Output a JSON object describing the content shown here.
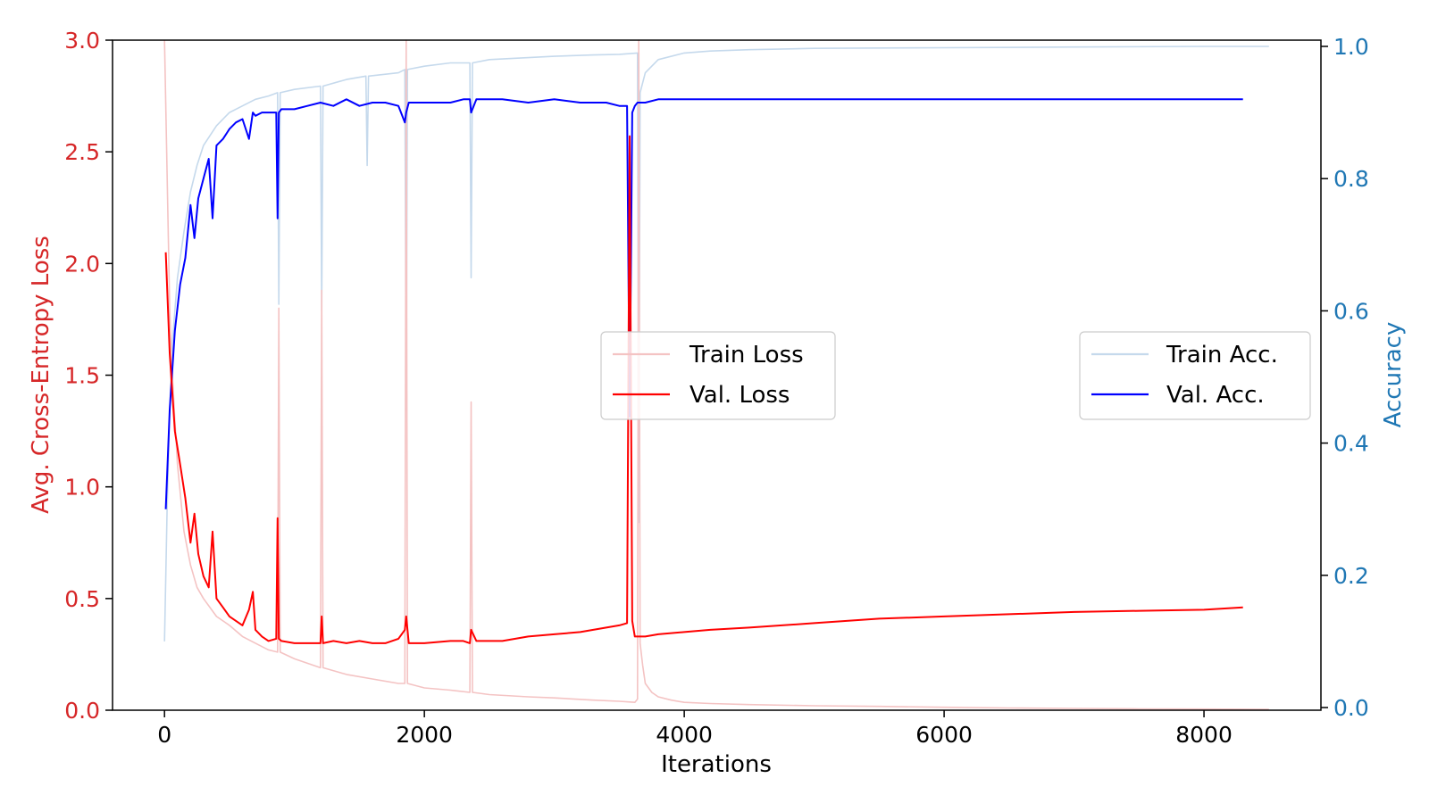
{
  "colors": {
    "loss_axis": "#d62728",
    "acc_axis": "#1f77b4",
    "train_loss": "#f4c3c3",
    "val_loss": "#ff0000",
    "train_acc": "#c5d9ec",
    "val_acc": "#0000ff"
  },
  "chart_data": {
    "type": "line",
    "xlabel": "Iterations",
    "ylabel_left": "Avg. Cross-Entropy Loss",
    "ylabel_right": "Accuracy",
    "xlim": [
      -400,
      8900
    ],
    "ylim_left": [
      0,
      3.0
    ],
    "ylim_right": [
      0,
      1.0
    ],
    "x_ticks": [
      0,
      2000,
      4000,
      6000,
      8000
    ],
    "x_tick_labels": [
      "0",
      "2000",
      "4000",
      "6000",
      "8000"
    ],
    "y_left_ticks": [
      0,
      0.5,
      1.0,
      1.5,
      2.0,
      2.5,
      3.0
    ],
    "y_left_tick_labels": [
      "0.0",
      "0.5",
      "1.0",
      "1.5",
      "2.0",
      "2.5",
      "3.0"
    ],
    "y_right_ticks": [
      0,
      0.2,
      0.4,
      0.6,
      0.8,
      1.0
    ],
    "y_right_tick_labels": [
      "0.0",
      "0.2",
      "0.4",
      "0.6",
      "0.8",
      "1.0"
    ],
    "grid": false,
    "legends": [
      {
        "placement": "center",
        "entries": [
          "Train Loss",
          "Val. Loss"
        ]
      },
      {
        "placement": "center-right",
        "entries": [
          "Train Acc.",
          "Val. Acc."
        ]
      }
    ],
    "series": [
      {
        "name": "Train Loss",
        "axis": "left",
        "x": [
          0,
          20,
          40,
          60,
          80,
          100,
          150,
          200,
          250,
          300,
          400,
          500,
          600,
          700,
          800,
          870,
          880,
          890,
          1000,
          1200,
          1210,
          1220,
          1400,
          1600,
          1800,
          1850,
          1860,
          1870,
          2000,
          2200,
          2350,
          2360,
          2370,
          2500,
          2800,
          3000,
          3300,
          3500,
          3620,
          3640,
          3650,
          3660,
          3680,
          3700,
          3750,
          3800,
          3900,
          4000,
          4200,
          4500,
          5000,
          5500,
          6000,
          6500,
          7000,
          7500,
          8000,
          8500
        ],
        "y": [
          3.0,
          2.4,
          1.8,
          1.5,
          1.3,
          1.1,
          0.8,
          0.65,
          0.55,
          0.5,
          0.42,
          0.38,
          0.33,
          0.3,
          0.27,
          0.26,
          1.8,
          0.26,
          0.23,
          0.19,
          1.88,
          0.19,
          0.16,
          0.14,
          0.12,
          0.12,
          3.0,
          0.12,
          0.1,
          0.09,
          0.08,
          1.38,
          0.08,
          0.07,
          0.06,
          0.055,
          0.045,
          0.04,
          0.035,
          0.05,
          3.0,
          0.3,
          0.2,
          0.12,
          0.08,
          0.06,
          0.045,
          0.035,
          0.03,
          0.025,
          0.02,
          0.017,
          0.013,
          0.01,
          0.008,
          0.006,
          0.005,
          0.004
        ]
      },
      {
        "name": "Val. Loss",
        "axis": "left",
        "x": [
          10,
          40,
          80,
          120,
          160,
          200,
          230,
          260,
          300,
          340,
          370,
          400,
          450,
          500,
          550,
          600,
          650,
          680,
          700,
          750,
          800,
          860,
          870,
          880,
          900,
          1000,
          1100,
          1200,
          1210,
          1220,
          1300,
          1400,
          1500,
          1600,
          1700,
          1800,
          1850,
          1860,
          1880,
          2000,
          2200,
          2300,
          2350,
          2360,
          2400,
          2600,
          2800,
          3000,
          3200,
          3400,
          3500,
          3560,
          3580,
          3600,
          3620,
          3640,
          3700,
          3800,
          4000,
          4200,
          4500,
          5000,
          5500,
          6000,
          6500,
          7000,
          7500,
          8000,
          8300
        ],
        "y": [
          2.05,
          1.6,
          1.25,
          1.1,
          0.95,
          0.75,
          0.88,
          0.7,
          0.6,
          0.55,
          0.8,
          0.5,
          0.46,
          0.42,
          0.4,
          0.38,
          0.45,
          0.53,
          0.36,
          0.33,
          0.31,
          0.32,
          0.86,
          0.32,
          0.31,
          0.3,
          0.3,
          0.3,
          0.42,
          0.3,
          0.31,
          0.3,
          0.31,
          0.3,
          0.3,
          0.32,
          0.36,
          0.42,
          0.3,
          0.3,
          0.31,
          0.31,
          0.3,
          0.36,
          0.31,
          0.31,
          0.33,
          0.34,
          0.35,
          0.37,
          0.38,
          0.39,
          2.57,
          0.4,
          0.33,
          0.33,
          0.33,
          0.34,
          0.35,
          0.36,
          0.37,
          0.39,
          0.41,
          0.42,
          0.43,
          0.44,
          0.445,
          0.45,
          0.46
        ]
      },
      {
        "name": "Train Acc.",
        "axis": "right",
        "x": [
          0,
          20,
          40,
          60,
          80,
          100,
          150,
          200,
          250,
          300,
          400,
          500,
          600,
          700,
          800,
          870,
          880,
          890,
          1000,
          1200,
          1210,
          1220,
          1400,
          1550,
          1560,
          1570,
          1800,
          1850,
          1860,
          1870,
          2000,
          2200,
          2350,
          2360,
          2370,
          2500,
          2800,
          3000,
          3300,
          3500,
          3640,
          3650,
          3660,
          3700,
          3800,
          4000,
          4200,
          4500,
          5000,
          6000,
          7000,
          8000,
          8500
        ],
        "y": [
          0.1,
          0.3,
          0.45,
          0.55,
          0.6,
          0.65,
          0.72,
          0.78,
          0.82,
          0.85,
          0.88,
          0.9,
          0.91,
          0.92,
          0.925,
          0.93,
          0.61,
          0.93,
          0.935,
          0.94,
          0.6,
          0.94,
          0.95,
          0.955,
          0.82,
          0.955,
          0.96,
          0.965,
          0.45,
          0.965,
          0.97,
          0.975,
          0.975,
          0.65,
          0.975,
          0.98,
          0.983,
          0.985,
          0.987,
          0.988,
          0.99,
          0.28,
          0.93,
          0.96,
          0.98,
          0.99,
          0.993,
          0.995,
          0.997,
          0.998,
          0.999,
          1.0,
          1.0
        ]
      },
      {
        "name": "Val. Acc.",
        "axis": "right",
        "x": [
          10,
          40,
          80,
          120,
          160,
          200,
          230,
          260,
          300,
          340,
          370,
          400,
          450,
          500,
          550,
          600,
          650,
          680,
          700,
          750,
          800,
          860,
          870,
          880,
          900,
          1000,
          1100,
          1200,
          1300,
          1400,
          1500,
          1600,
          1700,
          1800,
          1850,
          1860,
          1880,
          2000,
          2200,
          2300,
          2350,
          2360,
          2400,
          2600,
          2800,
          3000,
          3200,
          3400,
          3500,
          3560,
          3580,
          3600,
          3620,
          3640,
          3700,
          3800,
          4000,
          4200,
          4500,
          5000,
          5500,
          6000,
          6500,
          7000,
          7500,
          8000,
          8300
        ],
        "y": [
          0.3,
          0.45,
          0.57,
          0.64,
          0.68,
          0.76,
          0.71,
          0.77,
          0.8,
          0.83,
          0.74,
          0.85,
          0.86,
          0.875,
          0.885,
          0.89,
          0.86,
          0.9,
          0.895,
          0.9,
          0.9,
          0.9,
          0.74,
          0.9,
          0.905,
          0.905,
          0.91,
          0.915,
          0.91,
          0.92,
          0.91,
          0.915,
          0.915,
          0.91,
          0.885,
          0.9,
          0.915,
          0.915,
          0.915,
          0.92,
          0.92,
          0.9,
          0.92,
          0.92,
          0.915,
          0.92,
          0.915,
          0.915,
          0.91,
          0.91,
          0.44,
          0.9,
          0.91,
          0.915,
          0.915,
          0.92,
          0.92,
          0.92,
          0.92,
          0.92,
          0.92,
          0.92,
          0.92,
          0.92,
          0.92,
          0.92,
          0.92
        ]
      }
    ]
  }
}
